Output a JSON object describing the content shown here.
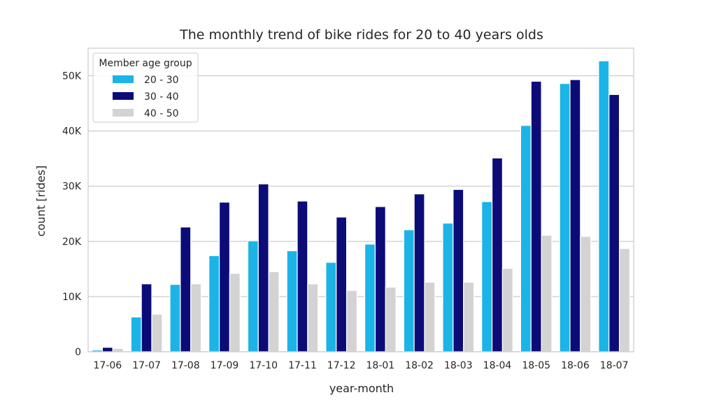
{
  "chart_data": {
    "type": "bar",
    "title": "The monthly trend of bike rides for 20 to 40 years olds",
    "xlabel": "year-month",
    "ylabel": "count [rides]",
    "categories": [
      "17-06",
      "17-07",
      "17-08",
      "17-09",
      "17-10",
      "17-11",
      "17-12",
      "18-01",
      "18-02",
      "18-03",
      "18-04",
      "18-05",
      "18-06",
      "18-07"
    ],
    "ylim": [
      0,
      55000
    ],
    "yticks": [
      0,
      10000,
      20000,
      30000,
      40000,
      50000
    ],
    "ytick_labels": [
      "0",
      "10K",
      "20K",
      "30K",
      "40K",
      "50K"
    ],
    "grid": true,
    "legend": {
      "title": "Member age group",
      "placement": "top-left"
    },
    "series": [
      {
        "name": "20 - 30",
        "color": "#1cb4e6",
        "values": [
          300,
          6300,
          12200,
          17400,
          20100,
          18300,
          16200,
          19500,
          22100,
          23300,
          27200,
          41000,
          48600,
          52700
        ]
      },
      {
        "name": "30 - 40",
        "color": "#0c0c78",
        "values": [
          800,
          12300,
          22600,
          27100,
          30400,
          27300,
          24400,
          26300,
          28600,
          29400,
          35100,
          49000,
          49300,
          46600
        ]
      },
      {
        "name": "40 - 50",
        "color": "#d3d3d3",
        "values": [
          600,
          6800,
          12300,
          14200,
          14500,
          12300,
          11100,
          11700,
          12600,
          12600,
          15100,
          21100,
          20900,
          18700
        ]
      }
    ]
  }
}
